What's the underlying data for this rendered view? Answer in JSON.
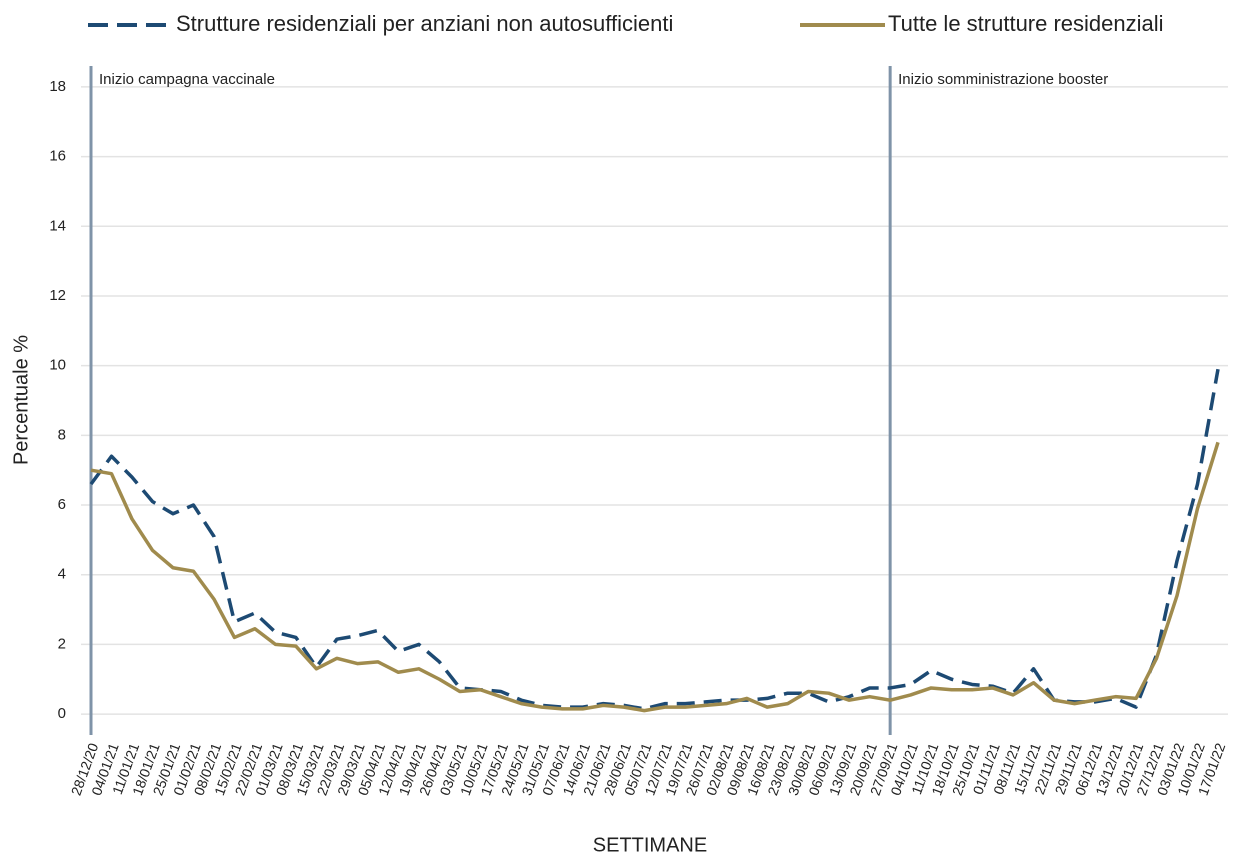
{
  "chart_data": {
    "type": "line",
    "x_label": "SETTIMANE",
    "y_label": "Percentuale %",
    "categories": [
      "28/12/20",
      "04/01/21",
      "11/01/21",
      "18/01/21",
      "25/01/21",
      "01/02/21",
      "08/02/21",
      "15/02/21",
      "22/02/21",
      "01/03/21",
      "08/03/21",
      "15/03/21",
      "22/03/21",
      "29/03/21",
      "05/04/21",
      "12/04/21",
      "19/04/21",
      "26/04/21",
      "03/05/21",
      "10/05/21",
      "17/05/21",
      "24/05/21",
      "31/05/21",
      "07/06/21",
      "14/06/21",
      "21/06/21",
      "28/06/21",
      "05/07/21",
      "12/07/21",
      "19/07/21",
      "26/07/21",
      "02/08/21",
      "09/08/21",
      "16/08/21",
      "23/08/21",
      "30/08/21",
      "06/09/21",
      "13/09/21",
      "20/09/21",
      "27/09/21",
      "04/10/21",
      "11/10/21",
      "18/10/21",
      "25/10/21",
      "01/11/21",
      "08/11/21",
      "15/11/21",
      "22/11/21",
      "29/11/21",
      "06/12/21",
      "13/12/21",
      "20/12/21",
      "27/12/21",
      "03/01/22",
      "10/01/22",
      "17/01/22"
    ],
    "series": [
      {
        "name": "Strutture residenziali per anziani non autosufficienti",
        "color": "#1d4a73",
        "dash": true,
        "values": [
          6.6,
          7.4,
          6.8,
          6.1,
          5.75,
          6.0,
          5.1,
          2.65,
          2.9,
          2.35,
          2.2,
          1.35,
          2.15,
          2.25,
          2.4,
          1.8,
          2.0,
          1.5,
          0.75,
          0.7,
          0.65,
          0.4,
          0.25,
          0.2,
          0.2,
          0.3,
          0.25,
          0.15,
          0.3,
          0.3,
          0.35,
          0.4,
          0.4,
          0.45,
          0.6,
          0.6,
          0.35,
          0.5,
          0.75,
          0.75,
          0.85,
          1.25,
          1.0,
          0.85,
          0.8,
          0.6,
          1.3,
          0.4,
          0.35,
          0.35,
          0.45,
          0.2,
          1.7,
          4.4,
          6.6,
          9.9
        ]
      },
      {
        "name": "Tutte le strutture residenziali",
        "color": "#a08b4d",
        "dash": false,
        "values": [
          7.0,
          6.9,
          5.6,
          4.7,
          4.2,
          4.1,
          3.3,
          2.2,
          2.45,
          2.0,
          1.95,
          1.3,
          1.6,
          1.45,
          1.5,
          1.2,
          1.3,
          1.0,
          0.65,
          0.7,
          0.5,
          0.3,
          0.2,
          0.15,
          0.15,
          0.25,
          0.2,
          0.1,
          0.2,
          0.2,
          0.25,
          0.3,
          0.45,
          0.2,
          0.3,
          0.65,
          0.6,
          0.4,
          0.5,
          0.4,
          0.55,
          0.75,
          0.7,
          0.7,
          0.75,
          0.55,
          0.9,
          0.4,
          0.3,
          0.4,
          0.5,
          0.45,
          1.6,
          3.4,
          5.9,
          7.8
        ]
      }
    ],
    "ylim": [
      -0.6,
      18.6
    ],
    "yticks": [
      0,
      2,
      4,
      6,
      8,
      10,
      12,
      14,
      16,
      18
    ],
    "grid": true,
    "legend": "top",
    "annotations": [
      {
        "x": "28/12/20",
        "text": "Inizio campagna vaccinale"
      },
      {
        "x": "27/09/21",
        "text": "Inizio somministrazione booster"
      }
    ]
  }
}
